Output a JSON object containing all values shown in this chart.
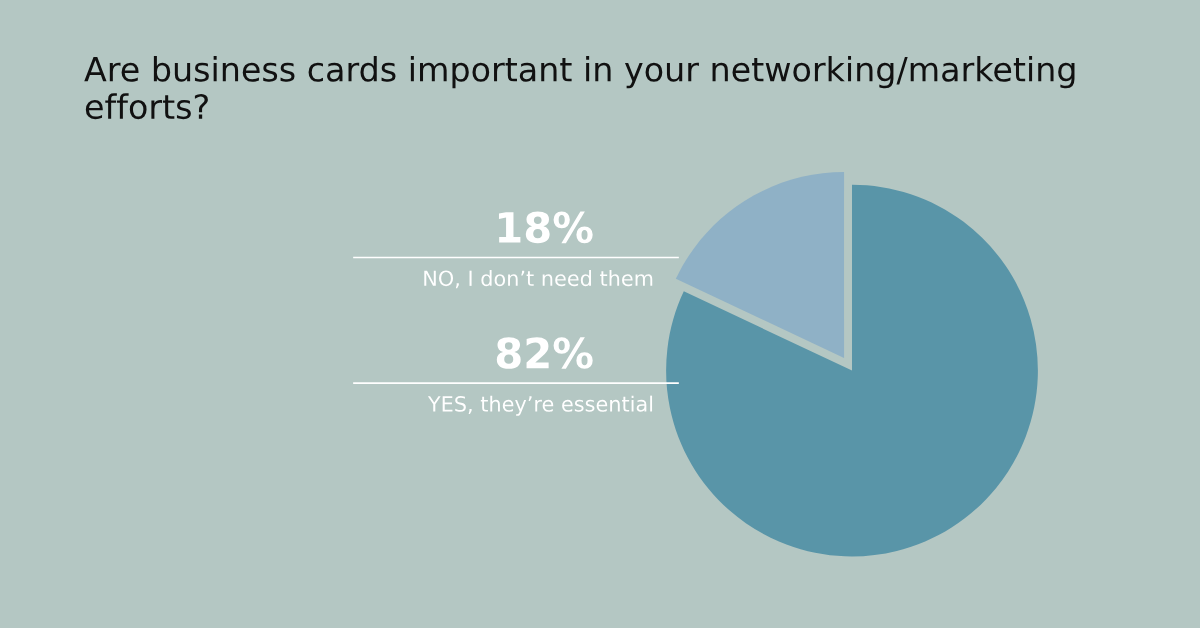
{
  "chart_data": {
    "type": "pie",
    "title": "Are business cards important in your networking/marketing efforts?",
    "categories": [
      "NO, I don’t need them",
      "YES, they’re essential"
    ],
    "values": [
      18,
      82
    ],
    "colors": [
      "#8fb1c6",
      "#5995a8"
    ],
    "value_labels": [
      "18%",
      "82%"
    ]
  }
}
